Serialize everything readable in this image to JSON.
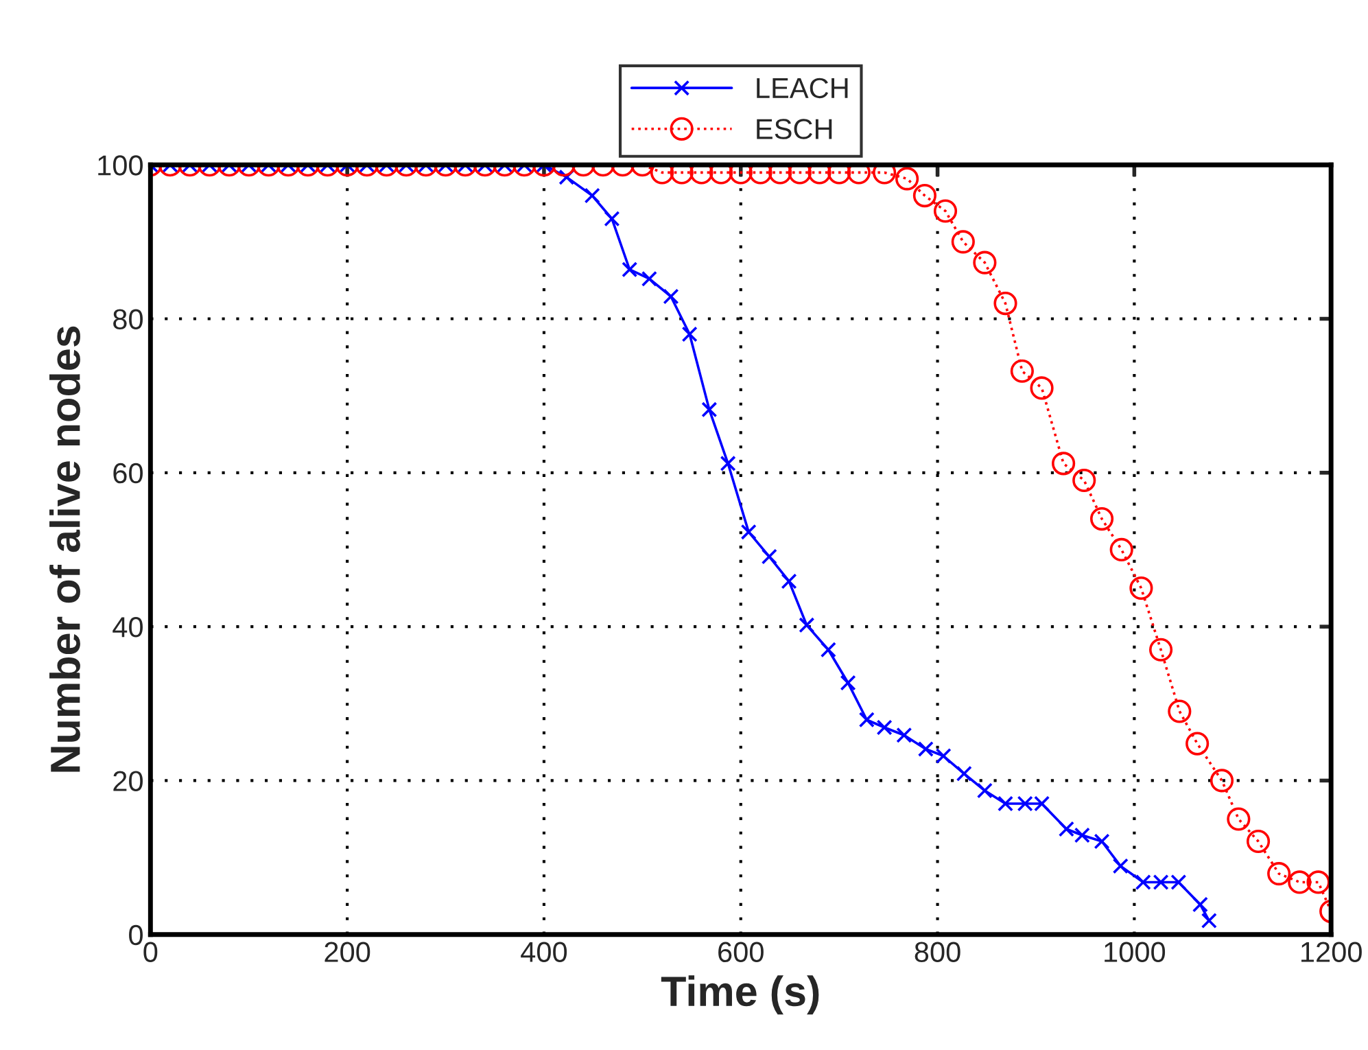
{
  "chart_data": {
    "type": "line",
    "xlabel": "Time (s)",
    "ylabel": "Number of alive nodes",
    "xlim": [
      0,
      1200
    ],
    "ylim": [
      0,
      100
    ],
    "xticks": [
      0,
      200,
      400,
      600,
      800,
      1000,
      1200
    ],
    "yticks": [
      0,
      20,
      40,
      60,
      80,
      100
    ],
    "grid": true,
    "legend": "top",
    "series": [
      {
        "name": "LEACH",
        "color": "#0000ff",
        "marker": "cross",
        "line_style": "solid",
        "x": [
          0,
          20,
          40,
          60,
          80,
          100,
          120,
          140,
          160,
          180,
          200,
          220,
          240,
          260,
          280,
          300,
          320,
          340,
          360,
          380,
          400,
          423,
          449,
          469,
          487,
          507,
          529,
          548,
          568,
          587,
          608,
          629,
          649,
          667,
          689,
          709,
          728,
          746,
          766,
          788,
          806,
          827,
          848,
          869,
          889,
          906,
          931,
          947,
          967,
          986,
          1009,
          1027,
          1045,
          1067,
          1076
        ],
        "values": [
          100,
          100,
          100,
          100,
          100,
          100,
          100,
          100,
          100,
          100,
          100,
          100,
          100,
          100,
          100,
          100,
          100,
          100,
          100,
          100,
          100,
          98.4,
          96,
          93,
          86.4,
          85.2,
          82.9,
          78,
          68.2,
          61.2,
          52.3,
          49.1,
          45.9,
          40.2,
          37,
          32.7,
          27.9,
          26.9,
          25.9,
          24.1,
          23.2,
          20.9,
          18.7,
          17,
          17,
          17,
          13.7,
          12.9,
          12.1,
          8.9,
          6.8,
          6.8,
          6.8,
          3.9,
          1.8
        ]
      },
      {
        "name": "ESCH",
        "color": "#ff0000",
        "marker": "circle",
        "line_style": "dotted",
        "x": [
          0,
          20,
          40,
          60,
          80,
          100,
          120,
          140,
          160,
          180,
          200,
          220,
          240,
          260,
          280,
          300,
          320,
          340,
          360,
          380,
          400,
          420,
          440,
          460,
          480,
          500,
          520,
          540,
          560,
          580,
          600,
          620,
          640,
          660,
          680,
          700,
          720,
          746,
          769,
          787,
          808,
          826,
          848,
          869,
          886,
          906,
          928,
          949,
          967,
          987,
          1007,
          1027,
          1046,
          1064,
          1089,
          1106,
          1126,
          1147,
          1168,
          1187,
          1200
        ],
        "values": [
          100,
          100,
          100,
          100,
          100,
          100,
          100,
          100,
          100,
          100,
          100,
          100,
          100,
          100,
          100,
          100,
          100,
          100,
          100,
          100,
          100,
          100,
          100,
          100,
          100,
          100,
          99,
          99,
          99,
          99,
          99,
          99,
          99,
          99,
          99,
          99,
          99,
          99,
          98.2,
          96,
          94,
          90,
          87.3,
          82,
          73.2,
          71,
          61.2,
          59,
          54,
          50,
          45,
          37,
          29,
          24.8,
          20,
          15,
          12.1,
          7.9,
          6.8,
          6.8,
          3
        ]
      }
    ]
  }
}
